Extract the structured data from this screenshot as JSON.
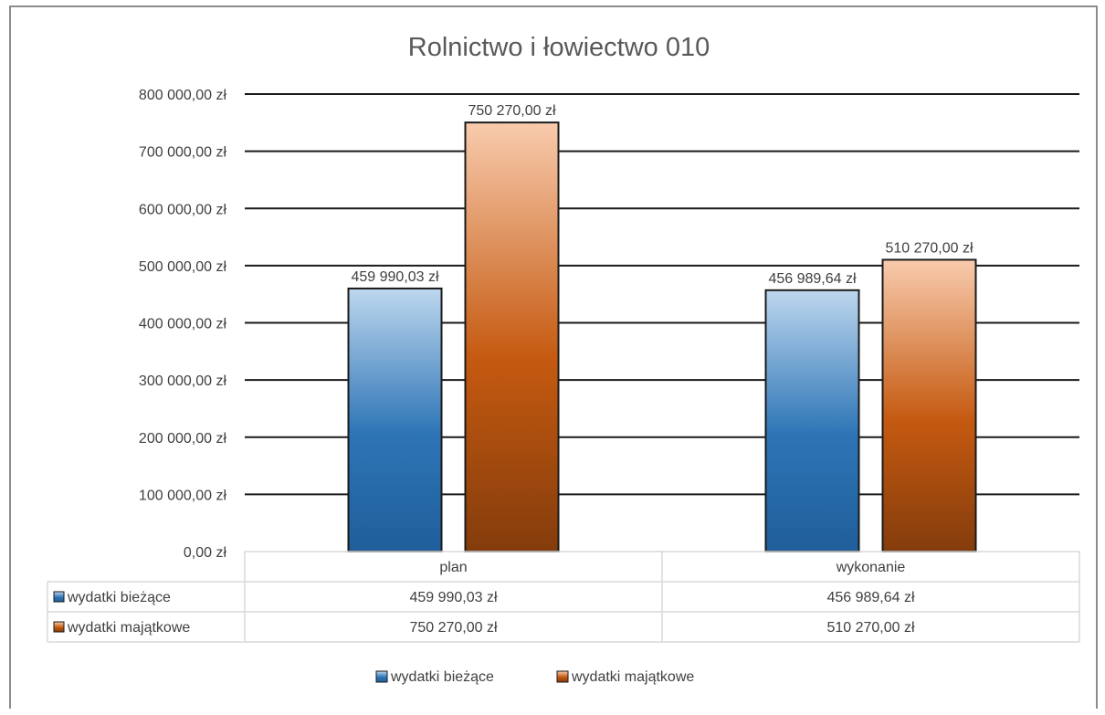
{
  "chart_data": {
    "type": "bar",
    "title": "Rolnictwo i łowiectwo 010",
    "categories": [
      "plan",
      "wykonanie"
    ],
    "series": [
      {
        "name": "wydatki bieżące",
        "values": [
          459990.03,
          456989.64
        ],
        "labels": [
          "459 990,03 zł",
          "456 989,64 zł"
        ],
        "color_top": "#bdd7ee",
        "color_bottom": "#1f5e9a"
      },
      {
        "name": "wydatki majątkowe",
        "values": [
          750270.0,
          510270.0
        ],
        "labels": [
          "750 270,00 zł",
          "510 270,00 zł"
        ],
        "color_top": "#f8cbad",
        "color_bottom": "#843c0c"
      }
    ],
    "ylim": [
      0,
      800000
    ],
    "yticks": [
      {
        "value": 0,
        "label": "0,00 zł"
      },
      {
        "value": 100000,
        "label": "100 000,00 zł"
      },
      {
        "value": 200000,
        "label": "200 000,00 zł"
      },
      {
        "value": 300000,
        "label": "300 000,00 zł"
      },
      {
        "value": 400000,
        "label": "400 000,00 zł"
      },
      {
        "value": 500000,
        "label": "500 000,00 zł"
      },
      {
        "value": 600000,
        "label": "600 000,00 zł"
      },
      {
        "value": 700000,
        "label": "700 000,00 zł"
      },
      {
        "value": 800000,
        "label": "800 000,00 zł"
      }
    ],
    "grid": true,
    "data_table": true,
    "legend_position": "bottom"
  }
}
